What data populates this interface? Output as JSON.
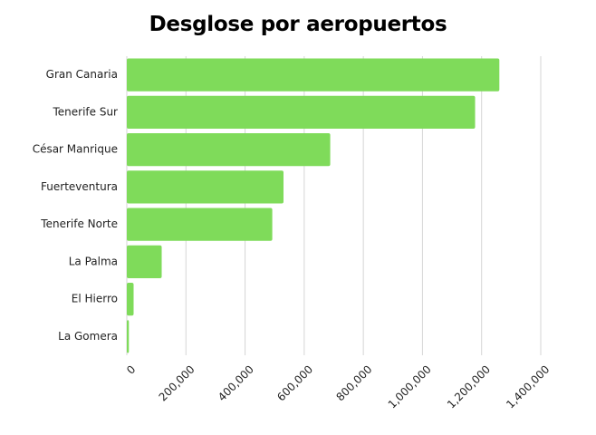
{
  "chart_data": {
    "type": "bar",
    "orientation": "horizontal",
    "title": "Desglose por aeropuertos",
    "xlabel": "",
    "ylabel": "",
    "categories": [
      "Gran Canaria",
      "Tenerife Sur",
      "César Manrique",
      "Fuerteventura",
      "Tenerife Norte",
      "La Palma",
      "El Hierro",
      "La Gomera"
    ],
    "values": [
      1260000,
      1178000,
      688000,
      530000,
      492000,
      118000,
      23000,
      7000
    ],
    "xlim": [
      0,
      1400000
    ],
    "xticks": [
      0,
      200000,
      400000,
      600000,
      800000,
      1000000,
      1200000,
      1400000
    ],
    "xtick_labels": [
      "0",
      "200,000",
      "400,000",
      "600,000",
      "800,000",
      "1,000,000",
      "1,200,000",
      "1,400,000"
    ],
    "grid": "vertical",
    "legend": "none",
    "bar_color": "#7FDB5A",
    "grid_color": "#d6d6d6"
  }
}
